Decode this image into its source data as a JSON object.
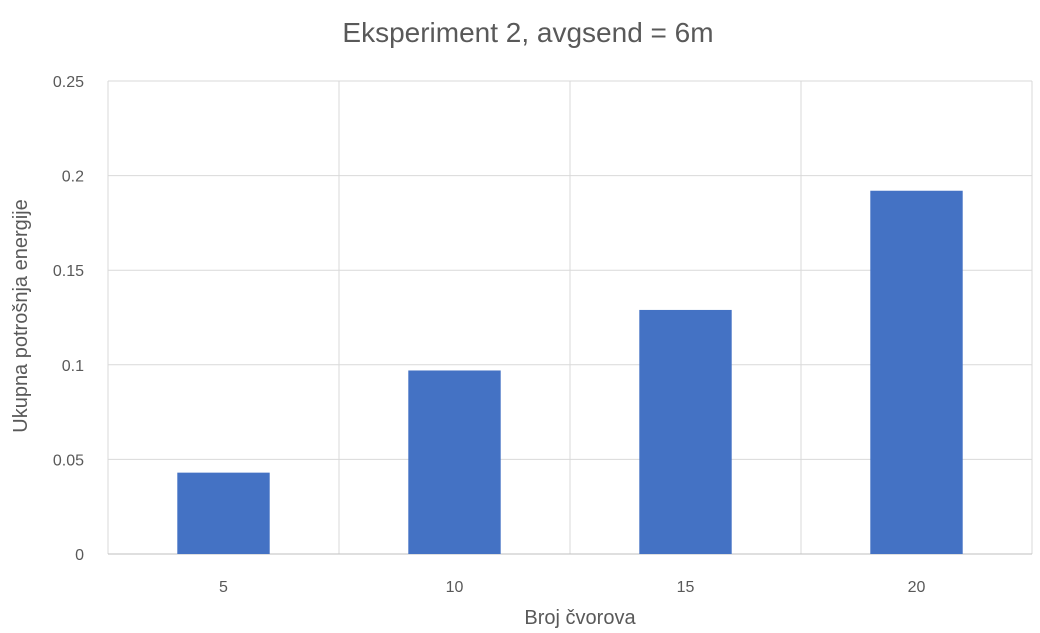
{
  "chart_data": {
    "type": "bar",
    "title": "Eksperiment 2, avgsend = 6m",
    "xlabel": "Broj čvorova",
    "ylabel": "Ukupna potrošnja energije",
    "categories": [
      "5",
      "10",
      "15",
      "20"
    ],
    "values": [
      0.043,
      0.097,
      0.129,
      0.192
    ],
    "ylim": [
      0,
      0.25
    ],
    "yticks": [
      {
        "value": 0,
        "label": "0"
      },
      {
        "value": 0.05,
        "label": "0.05"
      },
      {
        "value": 0.1,
        "label": "0.1"
      },
      {
        "value": 0.15,
        "label": "0.15"
      },
      {
        "value": 0.2,
        "label": "0.2"
      },
      {
        "value": 0.25,
        "label": "0.25"
      }
    ],
    "grid": true,
    "legend": "none",
    "colors": {
      "bar": "#4472C4",
      "grid": "#D9D9D9",
      "text": "#595959"
    }
  }
}
